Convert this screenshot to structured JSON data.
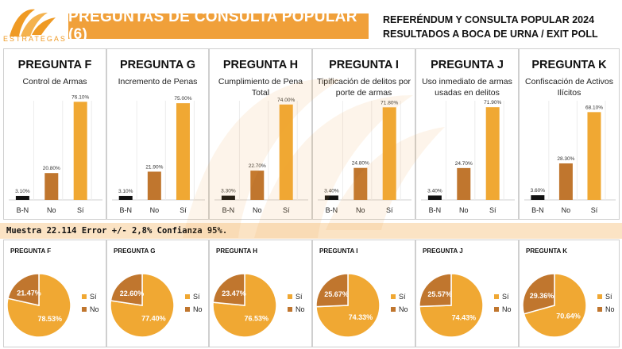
{
  "header": {
    "logo_text": "ESTRATEGAS",
    "banner": "PREGUNTAS DE CONSULTA POPULAR (6)",
    "right_line1": "REFERÉNDUM Y CONSULTA POPULAR 2024",
    "right_line2": "RESULTADOS A BOCA DE URNA / EXIT POLL"
  },
  "colors": {
    "accent": "#f0a03a",
    "si": "#f0a833",
    "no": "#c0762e",
    "bn": "#111111",
    "band": "#fbe3c4"
  },
  "sample_note": "Muestra 22.114 Error +/- 2,8% Confianza 95%.",
  "chart_data": [
    {
      "type": "bar",
      "title": "PREGUNTA F",
      "subtitle": "Control de Armas",
      "categories": [
        "B-N",
        "No",
        "Sí"
      ],
      "values": [
        3.1,
        20.8,
        76.1
      ],
      "labels": [
        "3.10%",
        "20.80%",
        "76.10%"
      ]
    },
    {
      "type": "bar",
      "title": "PREGUNTA G",
      "subtitle": "Incremento de Penas",
      "categories": [
        "B-N",
        "No",
        "Sí"
      ],
      "values": [
        3.1,
        21.9,
        75.0
      ],
      "labels": [
        "3.10%",
        "21.90%",
        "75.00%"
      ]
    },
    {
      "type": "bar",
      "title": "PREGUNTA H",
      "subtitle": "Cumplimiento de Pena Total",
      "categories": [
        "B-N",
        "No",
        "Sí"
      ],
      "values": [
        3.3,
        22.7,
        74.0
      ],
      "labels": [
        "3.30%",
        "22.70%",
        "74.00%"
      ]
    },
    {
      "type": "bar",
      "title": "PREGUNTA I",
      "subtitle": "Tipificación de delitos por porte de armas",
      "categories": [
        "B-N",
        "No",
        "Sí"
      ],
      "values": [
        3.4,
        24.8,
        71.8
      ],
      "labels": [
        "3.40%",
        "24.80%",
        "71.80%"
      ]
    },
    {
      "type": "bar",
      "title": "PREGUNTA J",
      "subtitle": "Uso inmediato de armas usadas en delitos",
      "categories": [
        "B-N",
        "No",
        "Sí"
      ],
      "values": [
        3.4,
        24.7,
        71.9
      ],
      "labels": [
        "3.40%",
        "24.70%",
        "71.90%"
      ]
    },
    {
      "type": "bar",
      "title": "PREGUNTA K",
      "subtitle": "Confiscación de Activos Ilícitos",
      "categories": [
        "B-N",
        "No",
        "Sí"
      ],
      "values": [
        3.6,
        28.3,
        68.1
      ],
      "labels": [
        "3.60%",
        "28.30%",
        "68.10%"
      ]
    },
    {
      "type": "pie",
      "title": "PREGUNTA F",
      "legend": [
        "Sí",
        "No"
      ],
      "values": [
        78.53,
        21.47
      ],
      "labels": [
        "78.53%",
        "21.47%"
      ]
    },
    {
      "type": "pie",
      "title": "PREGUNTA G",
      "legend": [
        "Sí",
        "No"
      ],
      "values": [
        77.4,
        22.6
      ],
      "labels": [
        "77.40%",
        "22.60%"
      ]
    },
    {
      "type": "pie",
      "title": "PREGUNTA H",
      "legend": [
        "Sí",
        "No"
      ],
      "values": [
        76.53,
        23.47
      ],
      "labels": [
        "76.53%",
        "23.47%"
      ]
    },
    {
      "type": "pie",
      "title": "PREGUNTA I",
      "legend": [
        "Sí",
        "No"
      ],
      "values": [
        74.33,
        25.67
      ],
      "labels": [
        "74.33%",
        "25.67%"
      ]
    },
    {
      "type": "pie",
      "title": "PREGUNTA J",
      "legend": [
        "Sí",
        "No"
      ],
      "values": [
        74.43,
        25.57
      ],
      "labels": [
        "74.43%",
        "25.57%"
      ]
    },
    {
      "type": "pie",
      "title": "PREGUNTA K",
      "legend": [
        "Sí",
        "No"
      ],
      "values": [
        70.64,
        29.36
      ],
      "labels": [
        "70.64%",
        "29.36%"
      ]
    }
  ]
}
